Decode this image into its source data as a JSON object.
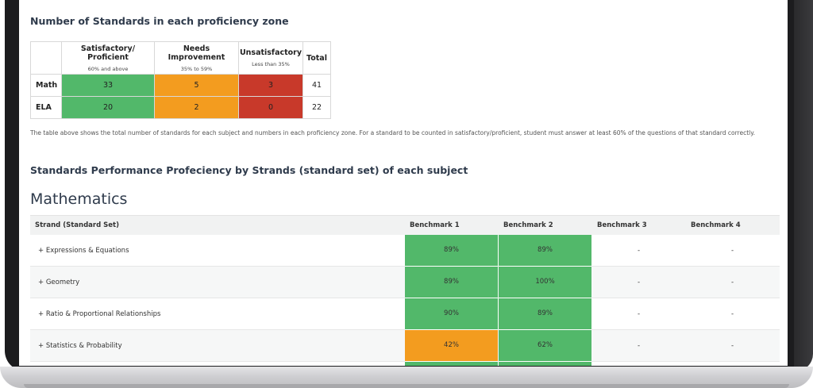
{
  "section1": {
    "title": "Number of Standards in each proficiency zone"
  },
  "zone_table": {
    "headers": [
      {
        "label": "Satisfactory/ Proficient",
        "sub": "60% and above"
      },
      {
        "label": "Needs Improvement",
        "sub": "35% to 59%"
      },
      {
        "label": "Unsatisfactory",
        "sub": "Less than 35%"
      },
      {
        "label": "Total",
        "sub": ""
      }
    ],
    "rows": [
      {
        "subject": "Math",
        "values": [
          "33",
          "5",
          "3",
          "41"
        ]
      },
      {
        "subject": "ELA",
        "values": [
          "20",
          "2",
          "0",
          "22"
        ]
      }
    ],
    "colors": {
      "satisfactory": "#52b86a",
      "needs_improvement": "#f39c1f",
      "unsatisfactory": "#c8392a"
    }
  },
  "note": "The table above shows the total number of standards for each subject and numbers in each proficiency zone. For a standard to be counted in satisfactory/proficient, student must answer at least 60% of the questions of that standard correctly.",
  "section2": {
    "title": "Standards Performance Profeciency by Strands (standard set) of each subject"
  },
  "math": {
    "title": "Mathematics",
    "columns": [
      "Strand (Standard Set)",
      "Benchmark 1",
      "Benchmark 2",
      "Benchmark 3",
      "Benchmark 4"
    ],
    "rows": [
      {
        "strand": "+ Expressions & Equations",
        "b1": "89%",
        "b2": "89%",
        "b3": "-",
        "b4": "-"
      },
      {
        "strand": "+ Geometry",
        "b1": "89%",
        "b2": "100%",
        "b3": "-",
        "b4": "-"
      },
      {
        "strand": "+ Ratio & Proportional Relationships",
        "b1": "90%",
        "b2": "89%",
        "b3": "-",
        "b4": "-"
      },
      {
        "strand": "+ Statistics & Probability",
        "b1": "42%",
        "b2": "62%",
        "b3": "-",
        "b4": "-"
      }
    ]
  }
}
